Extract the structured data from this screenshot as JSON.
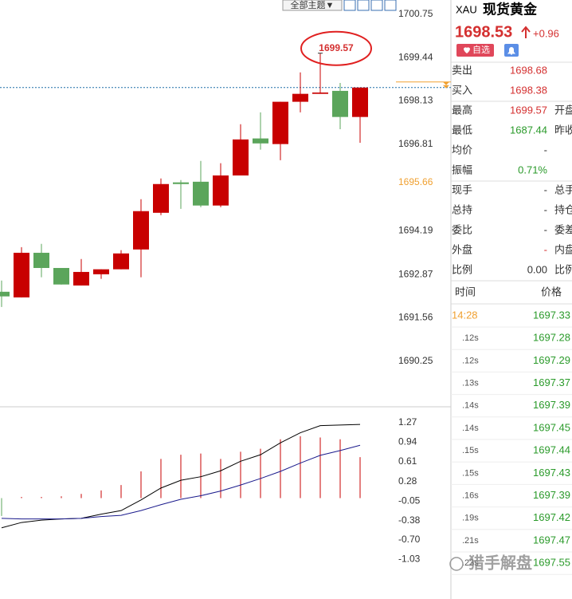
{
  "toolbar": {
    "theme_button": "全部主题▼"
  },
  "chart_data": [
    {
      "type": "candlestick",
      "up_color": "#c80000",
      "down_color": "#5ba55b",
      "ylim": [
        1688.99,
        1701.18
      ],
      "yticks": [
        1690.25,
        1691.56,
        1692.87,
        1694.19,
        1696.81,
        1698.13,
        1699.44,
        1700.75
      ],
      "ref_tick": 1695.66,
      "ref_color": "#f0a030",
      "annotation": 1699.57,
      "candles": [
        {
          "open": 1692.35,
          "high": 1692.69,
          "low": 1691.89,
          "close": 1692.21
        },
        {
          "open": 1692.18,
          "high": 1693.7,
          "low": 1692.18,
          "close": 1693.53
        },
        {
          "open": 1693.53,
          "high": 1693.8,
          "low": 1692.79,
          "close": 1693.07
        },
        {
          "open": 1693.07,
          "high": 1693.07,
          "low": 1692.57,
          "close": 1692.57
        },
        {
          "open": 1692.54,
          "high": 1693.34,
          "low": 1692.54,
          "close": 1692.95
        },
        {
          "open": 1692.88,
          "high": 1693.03,
          "low": 1692.74,
          "close": 1693.03
        },
        {
          "open": 1693.03,
          "high": 1693.61,
          "low": 1693.03,
          "close": 1693.51
        },
        {
          "open": 1693.63,
          "high": 1695.15,
          "low": 1692.79,
          "close": 1694.79
        },
        {
          "open": 1694.74,
          "high": 1695.78,
          "low": 1694.67,
          "close": 1695.61
        },
        {
          "open": 1695.66,
          "high": 1695.73,
          "low": 1694.86,
          "close": 1695.61
        },
        {
          "open": 1695.68,
          "high": 1696.31,
          "low": 1694.91,
          "close": 1694.96
        },
        {
          "open": 1694.96,
          "high": 1696.24,
          "low": 1694.91,
          "close": 1695.87
        },
        {
          "open": 1695.87,
          "high": 1697.42,
          "low": 1695.87,
          "close": 1696.96
        },
        {
          "open": 1696.99,
          "high": 1697.78,
          "low": 1696.65,
          "close": 1696.84
        },
        {
          "open": 1696.82,
          "high": 1698.1,
          "low": 1696.33,
          "close": 1698.1
        },
        {
          "open": 1698.1,
          "high": 1698.99,
          "low": 1697.78,
          "close": 1698.34
        },
        {
          "open": 1698.34,
          "high": 1699.57,
          "low": 1698.34,
          "close": 1698.38
        },
        {
          "open": 1698.43,
          "high": 1698.67,
          "low": 1697.27,
          "close": 1697.64
        },
        {
          "open": 1697.64,
          "high": 1698.53,
          "low": 1696.86,
          "close": 1698.53
        }
      ]
    },
    {
      "type": "macd",
      "ylim": [
        -1.55,
        1.47
      ],
      "yticks": [
        1.27,
        0.94,
        0.61,
        0.28,
        -0.05,
        -0.38,
        {
          "value": -0.7,
          "label": "-0.70"
        },
        -1.03
      ],
      "up_color": "#c80000",
      "down_color": "#5ba55b",
      "histogram": [
        -0.3,
        0.02,
        0.02,
        0.03,
        0.07,
        0.13,
        0.22,
        0.45,
        0.66,
        0.73,
        0.75,
        0.66,
        0.78,
        0.83,
        0.99,
        1.04,
        1.02,
        0.99,
        0.69
      ],
      "series": [
        {
          "color": "#000000",
          "values": [
            -0.5,
            -0.41,
            -0.37,
            -0.35,
            -0.34,
            -0.27,
            -0.21,
            -0.03,
            0.17,
            0.3,
            0.36,
            0.46,
            0.62,
            0.73,
            0.93,
            1.1,
            1.22,
            1.23,
            1.24
          ]
        },
        {
          "color": "#1a1a8c",
          "values": [
            -0.34,
            -0.35,
            -0.35,
            -0.35,
            -0.34,
            -0.31,
            -0.29,
            -0.21,
            -0.11,
            -0.02,
            0.04,
            0.12,
            0.22,
            0.33,
            0.45,
            0.59,
            0.72,
            0.8,
            0.89
          ]
        }
      ]
    }
  ],
  "quote": {
    "symbol": "XAU",
    "name": "现货黄金",
    "price": 1698.53,
    "change": "+0.96",
    "watch_button": "自选"
  },
  "stats": [
    {
      "label": "卖出",
      "value": "1698.68",
      "color": "#d43030"
    },
    {
      "label": "买入",
      "value": "1698.38",
      "color": "#d43030"
    },
    {
      "label": "最高",
      "value": "1699.57",
      "color": "#d43030",
      "label2": "开盘"
    },
    {
      "label": "最低",
      "value": "1687.44",
      "color": "#2a9a2a",
      "label2": "昨收"
    },
    {
      "label": "均价",
      "value": "-",
      "color": "#333333"
    },
    {
      "label": "振幅",
      "value": "0.71%",
      "color": "#2a9a2a"
    },
    {
      "label": "现手",
      "value": "-",
      "color": "#333333",
      "label2": "总手"
    },
    {
      "label": "总持",
      "value": "-",
      "color": "#333333",
      "label2": "持仓"
    },
    {
      "label": "委比",
      "value": "-",
      "color": "#333333",
      "label2": "委差"
    },
    {
      "label": "外盘",
      "value": "-",
      "color": "#d43030",
      "label2": "内盘"
    },
    {
      "label": "比例",
      "value": "0.00",
      "color": "#333333",
      "label2": "比例"
    }
  ],
  "ticks": {
    "header": [
      "时间",
      "价格"
    ],
    "rows": [
      {
        "time": "14:28",
        "price": "1697.33"
      },
      {
        "time": ".12s",
        "price": "1697.28"
      },
      {
        "time": ".12s",
        "price": "1697.29"
      },
      {
        "time": ".13s",
        "price": "1697.37"
      },
      {
        "time": ".14s",
        "price": "1697.39"
      },
      {
        "time": ".14s",
        "price": "1697.45"
      },
      {
        "time": ".15s",
        "price": "1697.44"
      },
      {
        "time": ".15s",
        "price": "1697.43"
      },
      {
        "time": ".16s",
        "price": "1697.39"
      },
      {
        "time": ".19s",
        "price": "1697.42"
      },
      {
        "time": ".21s",
        "price": "1697.47"
      },
      {
        "time": ".23s",
        "price": "1697.55"
      }
    ]
  },
  "watermark": "猎手解盘"
}
